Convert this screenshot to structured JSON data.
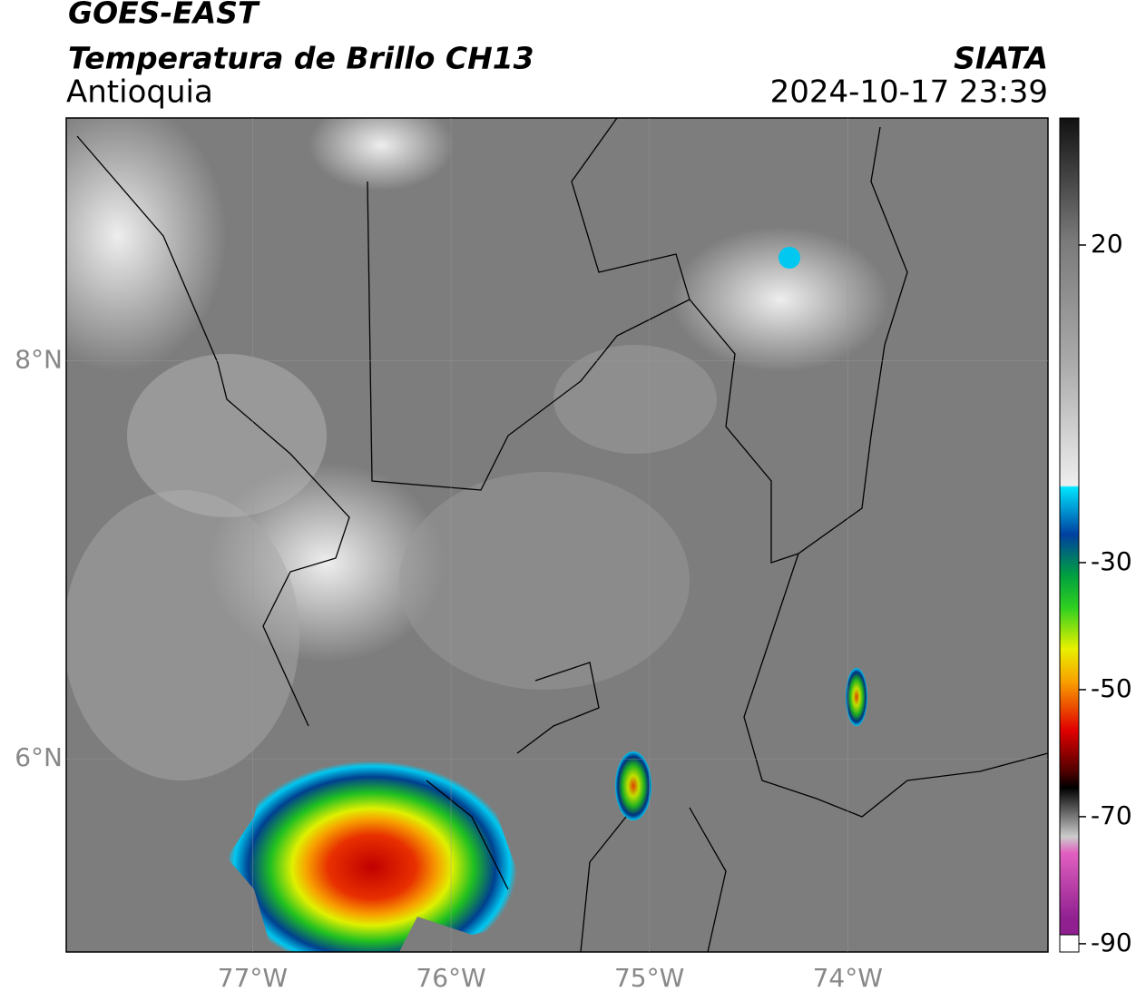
{
  "header": {
    "title": "GOES-EAST",
    "subtitle": "Temperatura de Brillo CH13",
    "source": "SIATA",
    "region": "Antioquia",
    "timestamp": "2024-10-17 23:39"
  },
  "map": {
    "xlim": [
      -77.94,
      -72.99
    ],
    "ylim": [
      5.03,
      9.22
    ],
    "xticks": [
      {
        "value": -77,
        "label": "77°W"
      },
      {
        "value": -76,
        "label": "76°W"
      },
      {
        "value": -75,
        "label": "75°W"
      },
      {
        "value": -74,
        "label": "74°W"
      }
    ],
    "yticks": [
      {
        "value": 6,
        "label": "6°N"
      },
      {
        "value": 8,
        "label": "8°N"
      }
    ],
    "grid": true
  },
  "colorbar": {
    "lim": [
      -91.3,
      40
    ],
    "ticks": [
      20,
      -30,
      -50,
      -70,
      -90
    ]
  }
}
